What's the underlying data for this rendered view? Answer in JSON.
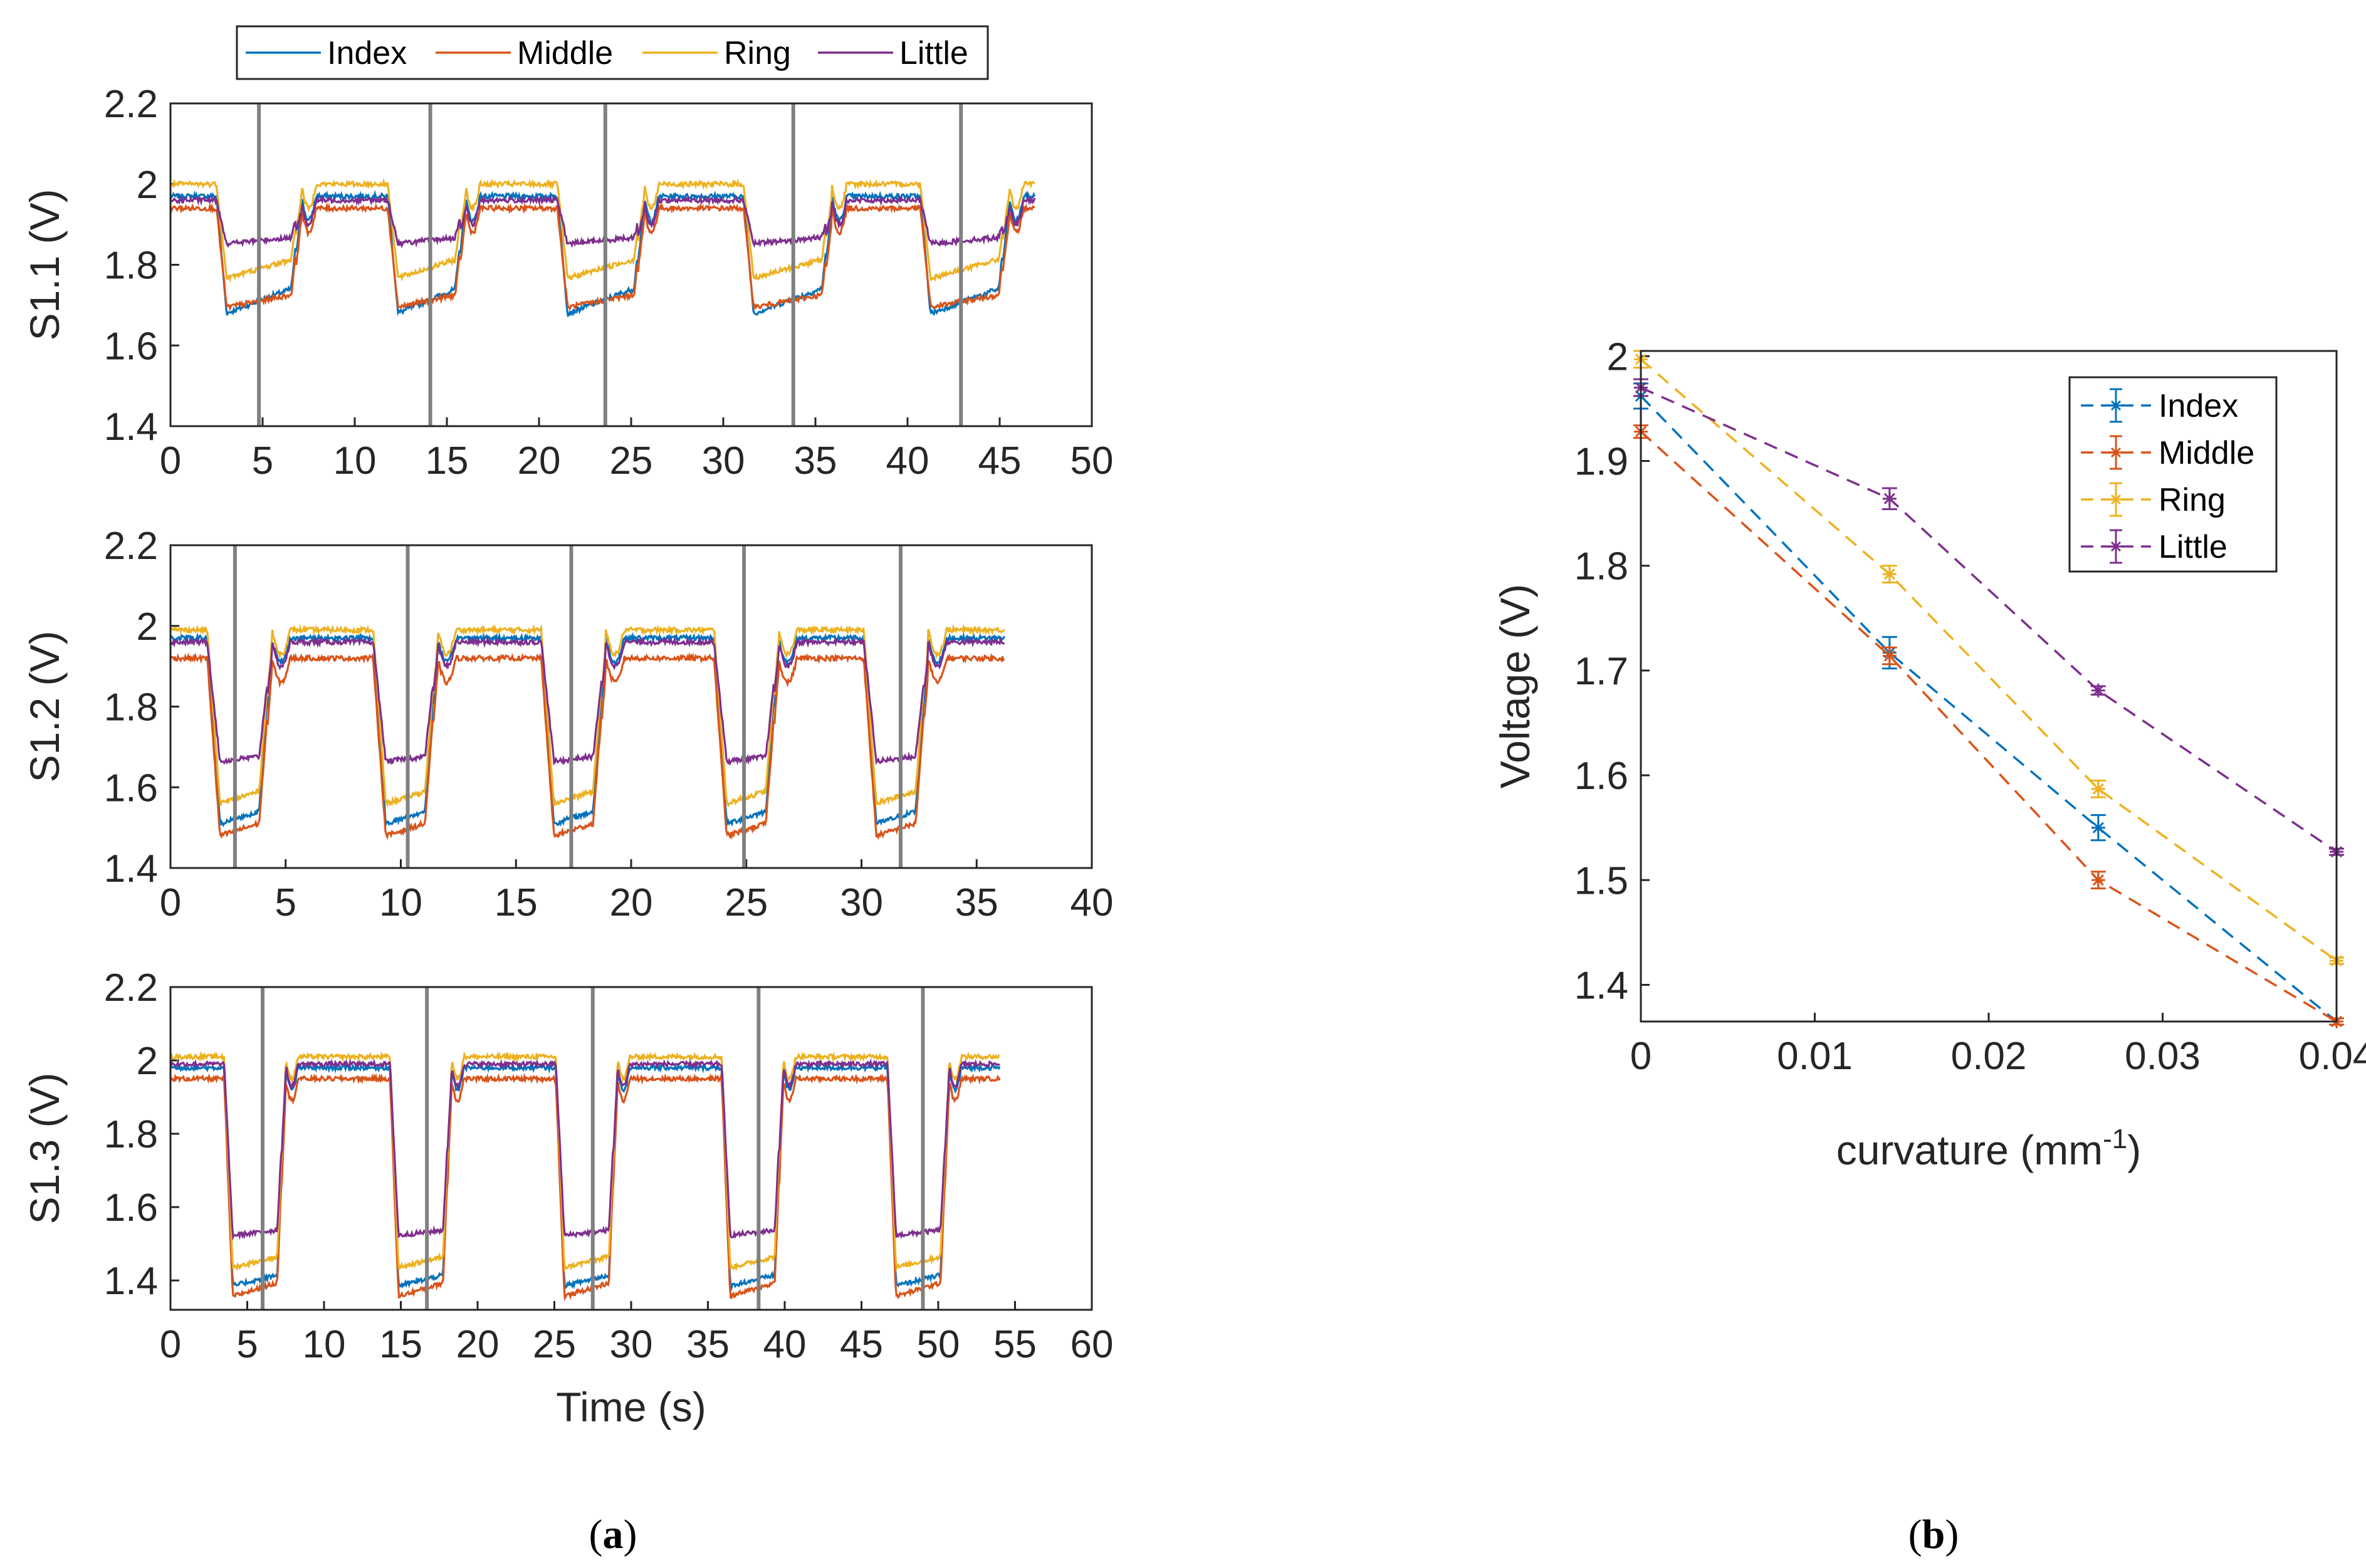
{
  "colors": {
    "Index": "#0072BD",
    "Middle": "#D95319",
    "Ring": "#EDB120",
    "Little": "#7E2F8E",
    "vline": "#808080"
  },
  "legend_top": [
    "Index",
    "Middle",
    "Ring",
    "Little"
  ],
  "panel_labels": {
    "a": {
      "open": "(",
      "letter": "a",
      "close": ")"
    },
    "b": {
      "open": "(",
      "letter": "b",
      "close": ")"
    }
  },
  "chart_data": [
    {
      "type": "line",
      "ylabel": "S1.1 (V)",
      "xlabel": "",
      "xlim": [
        0,
        50
      ],
      "ylim": [
        1.4,
        2.2
      ],
      "xticks": [
        "0",
        "5",
        "10",
        "15",
        "20",
        "25",
        "30",
        "35",
        "40",
        "45",
        "50"
      ],
      "yticks": [
        "1.4",
        "1.6",
        "1.8",
        "2",
        "2.2"
      ],
      "marker_lines_x": [
        4.8,
        14.1,
        23.6,
        33.8,
        42.9
      ],
      "duration": 46.9,
      "flex_segments": [
        [
          2.5,
          7.1
        ],
        [
          11.8,
          16.0
        ],
        [
          21.0,
          25.7
        ],
        [
          31.1,
          35.9
        ],
        [
          40.7,
          45.5
        ]
      ],
      "series": [
        {
          "name": "Index",
          "high": 1.97,
          "low": 1.67,
          "low_end": 1.75
        },
        {
          "name": "Middle",
          "high": 1.94,
          "low": 1.69,
          "low_end": 1.73
        },
        {
          "name": "Ring",
          "high": 2.0,
          "low": 1.76,
          "low_end": 1.82
        },
        {
          "name": "Little",
          "high": 1.96,
          "low": 1.85,
          "low_end": 1.87
        }
      ]
    },
    {
      "type": "line",
      "ylabel": "S1.2 (V)",
      "xlabel": "",
      "xlim": [
        0,
        40
      ],
      "ylim": [
        1.4,
        2.2
      ],
      "xticks": [
        "0",
        "5",
        "10",
        "15",
        "20",
        "25",
        "30",
        "35",
        "40"
      ],
      "yticks": [
        "1.4",
        "1.6",
        "1.8",
        "2",
        "2.2"
      ],
      "marker_lines_x": [
        2.8,
        10.3,
        17.4,
        24.9,
        31.7
      ],
      "duration": 36.2,
      "flex_segments": [
        [
          1.6,
          4.4
        ],
        [
          8.8,
          11.6
        ],
        [
          16.1,
          18.9
        ],
        [
          23.6,
          26.4
        ],
        [
          30.1,
          32.9
        ]
      ],
      "series": [
        {
          "name": "Index",
          "high": 1.97,
          "low": 1.5,
          "low_end": 1.55
        },
        {
          "name": "Middle",
          "high": 1.92,
          "low": 1.47,
          "low_end": 1.52
        },
        {
          "name": "Ring",
          "high": 1.99,
          "low": 1.55,
          "low_end": 1.6
        },
        {
          "name": "Little",
          "high": 1.96,
          "low": 1.66,
          "low_end": 1.68
        }
      ]
    },
    {
      "type": "line",
      "ylabel": "S1.3 (V)",
      "xlabel": "Time (s)",
      "xlim": [
        0,
        60
      ],
      "ylim": [
        1.32,
        2.2
      ],
      "xticks": [
        "0",
        "5",
        "10",
        "15",
        "20",
        "25",
        "30",
        "35",
        "40",
        "45",
        "50",
        "55",
        "60"
      ],
      "yticks": [
        "1.4",
        "1.6",
        "1.8",
        "2",
        "2.2"
      ],
      "marker_lines_x": [
        6.0,
        16.7,
        27.5,
        38.3,
        49.0
      ],
      "duration": 54.0,
      "flex_segments": [
        [
          3.5,
          7.5
        ],
        [
          14.3,
          18.3
        ],
        [
          25.1,
          29.1
        ],
        [
          35.9,
          39.9
        ],
        [
          46.7,
          50.7
        ]
      ],
      "series": [
        {
          "name": "Index",
          "high": 1.98,
          "low": 1.38,
          "low_end": 1.42
        },
        {
          "name": "Middle",
          "high": 1.95,
          "low": 1.35,
          "low_end": 1.4
        },
        {
          "name": "Ring",
          "high": 2.01,
          "low": 1.43,
          "low_end": 1.47
        },
        {
          "name": "Little",
          "high": 1.99,
          "low": 1.52,
          "low_end": 1.54
        }
      ]
    },
    {
      "type": "line",
      "xlabel": "curvature (mm",
      "xlabel_sup": "-1",
      "xlabel_close": ")",
      "ylabel": "Voltage (V)",
      "xlim": [
        0,
        0.04
      ],
      "ylim": [
        1.365,
        2.005
      ],
      "xticks": [
        "0",
        "0.01",
        "0.02",
        "0.03",
        "0.04"
      ],
      "yticks": [
        "1.4",
        "1.5",
        "1.6",
        "1.7",
        "1.8",
        "1.9",
        "2"
      ],
      "legend_placement": "top-right",
      "x": [
        0,
        0.0143,
        0.0263,
        0.04
      ],
      "series": [
        {
          "name": "Index",
          "values": [
            1.962,
            1.717,
            1.55,
            1.365
          ],
          "err": [
            0.012,
            0.015,
            0.012,
            0.003
          ]
        },
        {
          "name": "Middle",
          "values": [
            1.928,
            1.714,
            1.5,
            1.365
          ],
          "err": [
            0.006,
            0.008,
            0.008,
            0.003
          ]
        },
        {
          "name": "Ring",
          "values": [
            1.997,
            1.792,
            1.587,
            1.423
          ],
          "err": [
            0.008,
            0.008,
            0.008,
            0.003
          ]
        },
        {
          "name": "Little",
          "values": [
            1.97,
            1.864,
            1.681,
            1.527
          ],
          "err": [
            0.008,
            0.01,
            0.004,
            0.003
          ]
        }
      ]
    }
  ]
}
